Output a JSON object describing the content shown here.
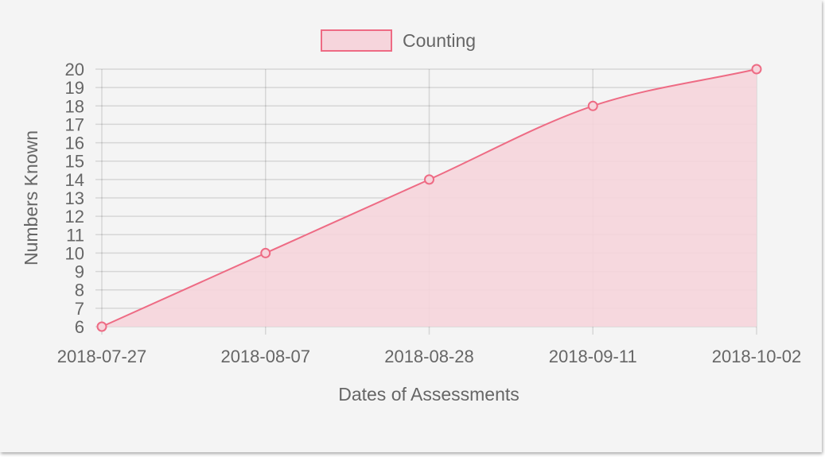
{
  "chart_data": {
    "type": "area",
    "title": "",
    "xlabel": "Dates of Assessments",
    "ylabel": "Numbers Known",
    "categories": [
      "2018-07-27",
      "2018-08-07",
      "2018-08-28",
      "2018-09-11",
      "2018-10-02"
    ],
    "series": [
      {
        "name": "Counting",
        "values": [
          6,
          10,
          14,
          18,
          20
        ],
        "line_color": "#ee6b84",
        "fill_color": "#f6d5dc"
      }
    ],
    "ylim": [
      6,
      20
    ],
    "yticks": [
      6,
      7,
      8,
      9,
      10,
      11,
      12,
      13,
      14,
      15,
      16,
      17,
      18,
      19,
      20
    ],
    "grid": true,
    "legend": "top-center"
  }
}
